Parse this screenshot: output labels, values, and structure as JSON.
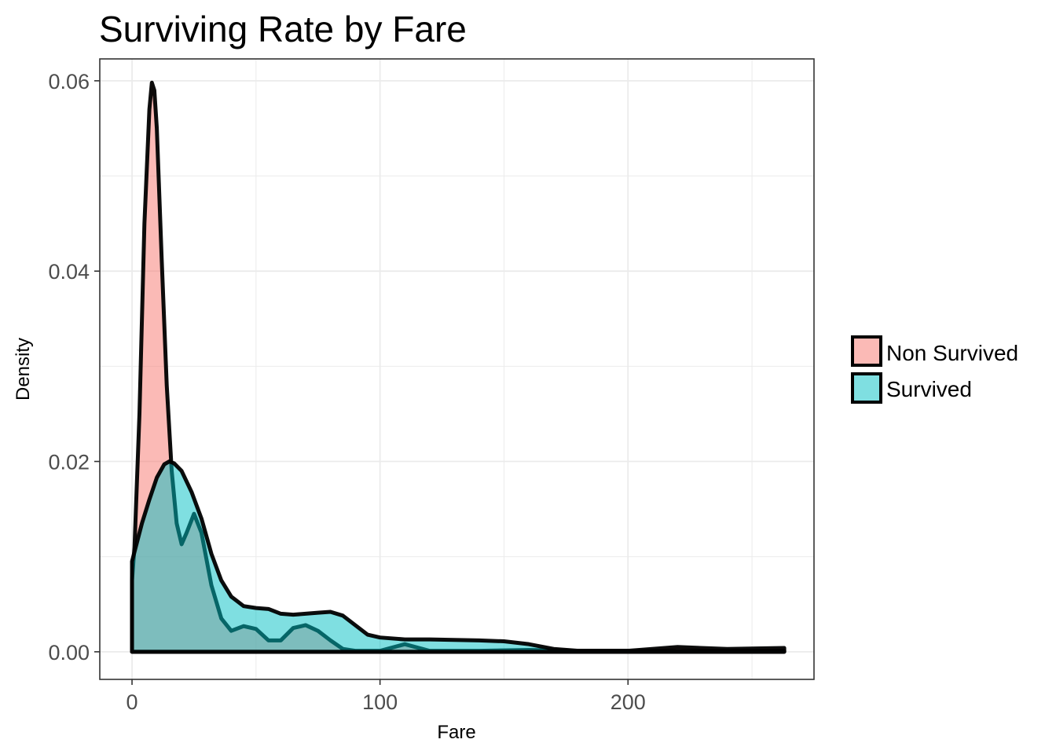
{
  "chart_data": {
    "type": "area",
    "title": "Surviving Rate by Fare",
    "xlabel": "Fare",
    "ylabel": "Density",
    "xlim": [
      -13,
      275
    ],
    "ylim": [
      -0.0029,
      0.0623
    ],
    "x_ticks": [
      0,
      100,
      200
    ],
    "x_tick_labels": [
      "0",
      "100",
      "200"
    ],
    "y_ticks": [
      0,
      0.02,
      0.04,
      0.06
    ],
    "y_tick_labels": [
      "0.00",
      "0.02",
      "0.04",
      "0.06"
    ],
    "grid": true,
    "legend_position": "right",
    "series": [
      {
        "name": "Non Survived",
        "color": "#f8766d",
        "x": [
          0,
          1,
          3,
          5,
          7,
          8,
          9,
          10,
          12,
          14,
          16,
          18,
          20,
          22,
          25,
          28,
          32,
          36,
          40,
          45,
          50,
          55,
          60,
          65,
          70,
          75,
          80,
          85,
          90,
          100,
          110,
          120,
          140,
          160,
          180,
          200,
          220,
          240,
          263
        ],
        "y": [
          0.0075,
          0.011,
          0.025,
          0.045,
          0.057,
          0.0598,
          0.059,
          0.055,
          0.041,
          0.028,
          0.019,
          0.0135,
          0.0113,
          0.0125,
          0.0145,
          0.0125,
          0.007,
          0.0035,
          0.0022,
          0.0027,
          0.0024,
          0.0012,
          0.0012,
          0.0025,
          0.0028,
          0.0022,
          0.0012,
          0.0003,
          0.0001,
          0.0001,
          0.0008,
          0.0001,
          0.0001,
          0.0002,
          0.0001,
          0.0001,
          0.0005,
          0.0003,
          0.0004
        ]
      },
      {
        "name": "Survived",
        "color": "#00bfc4",
        "x": [
          0,
          2,
          4,
          7,
          10,
          13,
          15,
          17,
          20,
          24,
          28,
          32,
          36,
          40,
          45,
          50,
          55,
          60,
          65,
          70,
          75,
          80,
          85,
          90,
          95,
          100,
          110,
          120,
          140,
          150,
          160,
          170,
          180,
          200,
          220,
          240,
          263
        ],
        "y": [
          0.0095,
          0.0115,
          0.0135,
          0.016,
          0.0183,
          0.0197,
          0.02,
          0.0198,
          0.019,
          0.0168,
          0.014,
          0.0103,
          0.0075,
          0.0058,
          0.0048,
          0.0046,
          0.0045,
          0.004,
          0.0039,
          0.004,
          0.0041,
          0.0042,
          0.0038,
          0.0028,
          0.0018,
          0.0015,
          0.0013,
          0.0013,
          0.0012,
          0.0011,
          0.0008,
          0.0003,
          0.0001,
          0.0001,
          0.0001,
          0.0001,
          0.0001
        ]
      }
    ]
  }
}
